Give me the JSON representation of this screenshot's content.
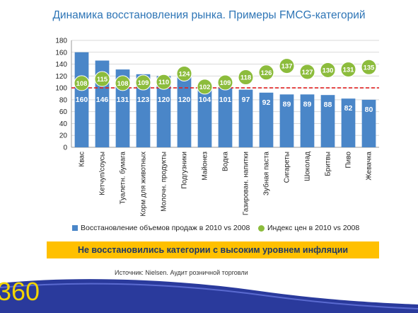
{
  "page": {
    "title": "Динамика восстановления рынка. Примеры FMCG-категорий",
    "banner": "Не восстановились категории с высоким уровнем инфляции",
    "source": "Источник: Nielsen. Аудит розничной торговли",
    "logo_text": "360"
  },
  "colors": {
    "bars": "#4a86c8",
    "dots": "#8cbc3c",
    "reference_line": "#e02020",
    "title": "#2e75b6",
    "banner_bg": "#ffc000",
    "banner_text": "#1f3864"
  },
  "chart_data": {
    "type": "bar",
    "categories": [
      "Квас",
      "Кетчуп/соусы",
      "Туалетн. бумага",
      "Корм для животных",
      "Молочн. продукты",
      "Подгузники",
      "Майонез",
      "Водка",
      "Газирован. напитки",
      "Зубная паста",
      "Сигареты",
      "Шоколад",
      "Бритвы",
      "Пиво",
      "Жевачка"
    ],
    "series": [
      {
        "name": "Восстановление объемов продаж в 2010 vs 2008",
        "type": "bar",
        "values": [
          160,
          146,
          131,
          123,
          120,
          120,
          104,
          101,
          97,
          92,
          89,
          89,
          88,
          82,
          80
        ]
      },
      {
        "name": "Индекс цен в 2010 vs 2008",
        "type": "scatter",
        "values": [
          108,
          115,
          108,
          109,
          110,
          124,
          102,
          109,
          118,
          126,
          137,
          127,
          130,
          131,
          135
        ]
      }
    ],
    "reference_line": 100,
    "ylim": [
      0,
      180
    ],
    "yticks": [
      0,
      20,
      40,
      60,
      80,
      100,
      120,
      140,
      160,
      180
    ],
    "grid": true,
    "legend": "bottom"
  }
}
